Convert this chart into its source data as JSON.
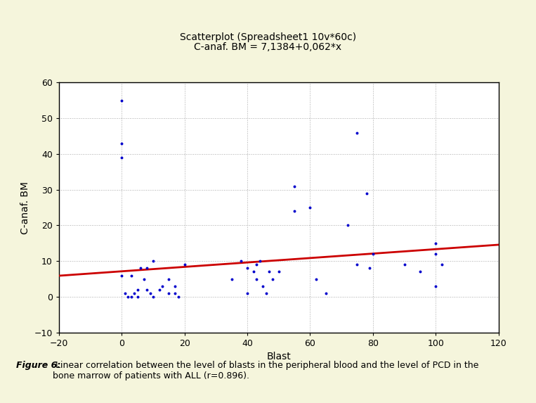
{
  "title_line1": "Scatterplot (Spreadsheet1 10v*60c)",
  "title_line2": "C-anaf. BM = 7,1384+0,062*x",
  "xlabel": "Blast",
  "ylabel": "C-anaf. BM",
  "xlim": [
    -20,
    120
  ],
  "ylim": [
    -10,
    60
  ],
  "xticks": [
    -20,
    0,
    20,
    40,
    60,
    80,
    100,
    120
  ],
  "yticks": [
    -10,
    0,
    10,
    20,
    30,
    40,
    50,
    60
  ],
  "scatter_x": [
    0,
    0,
    0,
    0,
    1,
    2,
    3,
    3,
    4,
    5,
    5,
    6,
    7,
    8,
    8,
    9,
    10,
    10,
    12,
    13,
    15,
    15,
    17,
    17,
    18,
    20,
    35,
    38,
    40,
    40,
    42,
    43,
    43,
    44,
    45,
    46,
    47,
    48,
    50,
    55,
    55,
    60,
    62,
    65,
    72,
    75,
    75,
    78,
    79,
    80,
    90,
    95,
    100,
    100,
    100,
    102
  ],
  "scatter_y": [
    55,
    43,
    39,
    6,
    1,
    0,
    6,
    0,
    1,
    2,
    0,
    8,
    5,
    2,
    8,
    1,
    10,
    0,
    2,
    3,
    5,
    1,
    3,
    1,
    0,
    9,
    5,
    10,
    1,
    8,
    7,
    5,
    9,
    10,
    3,
    1,
    7,
    5,
    7,
    31,
    24,
    25,
    5,
    1,
    20,
    46,
    9,
    29,
    8,
    12,
    9,
    7,
    15,
    12,
    3,
    9
  ],
  "regression_intercept": 7.1384,
  "regression_slope": 0.062,
  "scatter_color": "#0000CC",
  "line_color": "#CC0000",
  "background_color": "#F5F5DC",
  "plot_bg_color": "#FFFFFF",
  "grid_color": "#AAAAAA",
  "grid_style": "dotted",
  "scatter_size": 8,
  "figure_caption_bold": "Figure 6:",
  "figure_caption_normal": " Linear correlation between the level of blasts in the peripheral blood and the level of PCD in the\nbone marrow of patients with ALL (r=0.896).",
  "title_fontsize": 10,
  "axis_label_fontsize": 10,
  "tick_fontsize": 9,
  "caption_fontsize": 9
}
